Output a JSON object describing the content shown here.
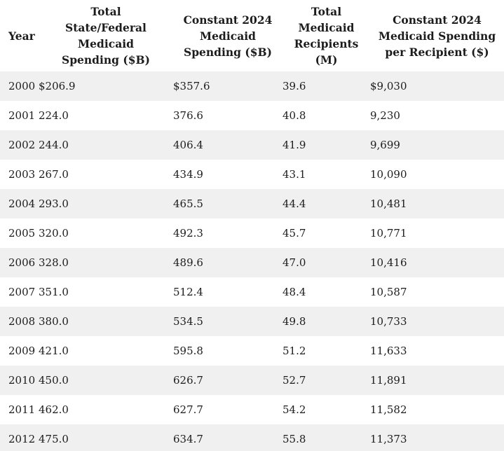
{
  "table": {
    "columns": [
      {
        "label": "Year"
      },
      {
        "lines": [
          "Total",
          "State/Federal",
          "Medicaid",
          "Spending ($B)"
        ]
      },
      {
        "lines": [
          "Constant 2024",
          "Medicaid",
          "Spending ($B)"
        ]
      },
      {
        "lines": [
          "Total",
          "Medicaid",
          "Recipients",
          "(M)"
        ]
      },
      {
        "lines": [
          "Constant 2024",
          "Medicaid Spending",
          "per Recipient ($)"
        ]
      }
    ],
    "rows": [
      [
        "2000",
        "$206.9",
        "$357.6",
        "39.6",
        "$9,030"
      ],
      [
        "2001",
        "224.0",
        "376.6",
        "40.8",
        "9,230"
      ],
      [
        "2002",
        "244.0",
        "406.4",
        "41.9",
        "9,699"
      ],
      [
        "2003",
        "267.0",
        "434.9",
        "43.1",
        "10,090"
      ],
      [
        "2004",
        "293.0",
        "465.5",
        "44.4",
        "10,481"
      ],
      [
        "2005",
        "320.0",
        "492.3",
        "45.7",
        "10,771"
      ],
      [
        "2006",
        "328.0",
        "489.6",
        "47.0",
        "10,416"
      ],
      [
        "2007",
        "351.0",
        "512.4",
        "48.4",
        "10,587"
      ],
      [
        "2008",
        "380.0",
        "534.5",
        "49.8",
        "10,733"
      ],
      [
        "2009",
        "421.0",
        "595.8",
        "51.2",
        "11,633"
      ],
      [
        "2010",
        "450.0",
        "626.7",
        "52.7",
        "11,891"
      ],
      [
        "2011",
        "462.0",
        "627.7",
        "54.2",
        "11,582"
      ],
      [
        "2012",
        "475.0",
        "634.7",
        "55.8",
        "11,373"
      ]
    ]
  },
  "chart_data": {
    "type": "table",
    "title": "",
    "columns": [
      "Year",
      "Total State/Federal Medicaid Spending ($B)",
      "Constant 2024 Medicaid Spending ($B)",
      "Total Medicaid Recipients (M)",
      "Constant 2024 Medicaid Spending per Recipient ($)"
    ],
    "rows": [
      [
        2000,
        206.9,
        357.6,
        39.6,
        9030
      ],
      [
        2001,
        224.0,
        376.6,
        40.8,
        9230
      ],
      [
        2002,
        244.0,
        406.4,
        41.9,
        9699
      ],
      [
        2003,
        267.0,
        434.9,
        43.1,
        10090
      ],
      [
        2004,
        293.0,
        465.5,
        44.4,
        10481
      ],
      [
        2005,
        320.0,
        492.3,
        45.7,
        10771
      ],
      [
        2006,
        328.0,
        489.6,
        47.0,
        10416
      ],
      [
        2007,
        351.0,
        512.4,
        48.4,
        10587
      ],
      [
        2008,
        380.0,
        534.5,
        49.8,
        10733
      ],
      [
        2009,
        421.0,
        595.8,
        51.2,
        11633
      ],
      [
        2010,
        450.0,
        626.7,
        52.7,
        11891
      ],
      [
        2011,
        462.0,
        627.7,
        54.2,
        11582
      ],
      [
        2012,
        475.0,
        634.7,
        55.8,
        11373
      ]
    ],
    "layout": {
      "row_striping": true,
      "stripe_rows": "even years (2000, 2002, ...)",
      "header_align": "center",
      "body_align": "left"
    }
  },
  "colors": {
    "background": "#ffffff",
    "stripe": "#f0f0f0",
    "text": "#1c1c1c"
  }
}
